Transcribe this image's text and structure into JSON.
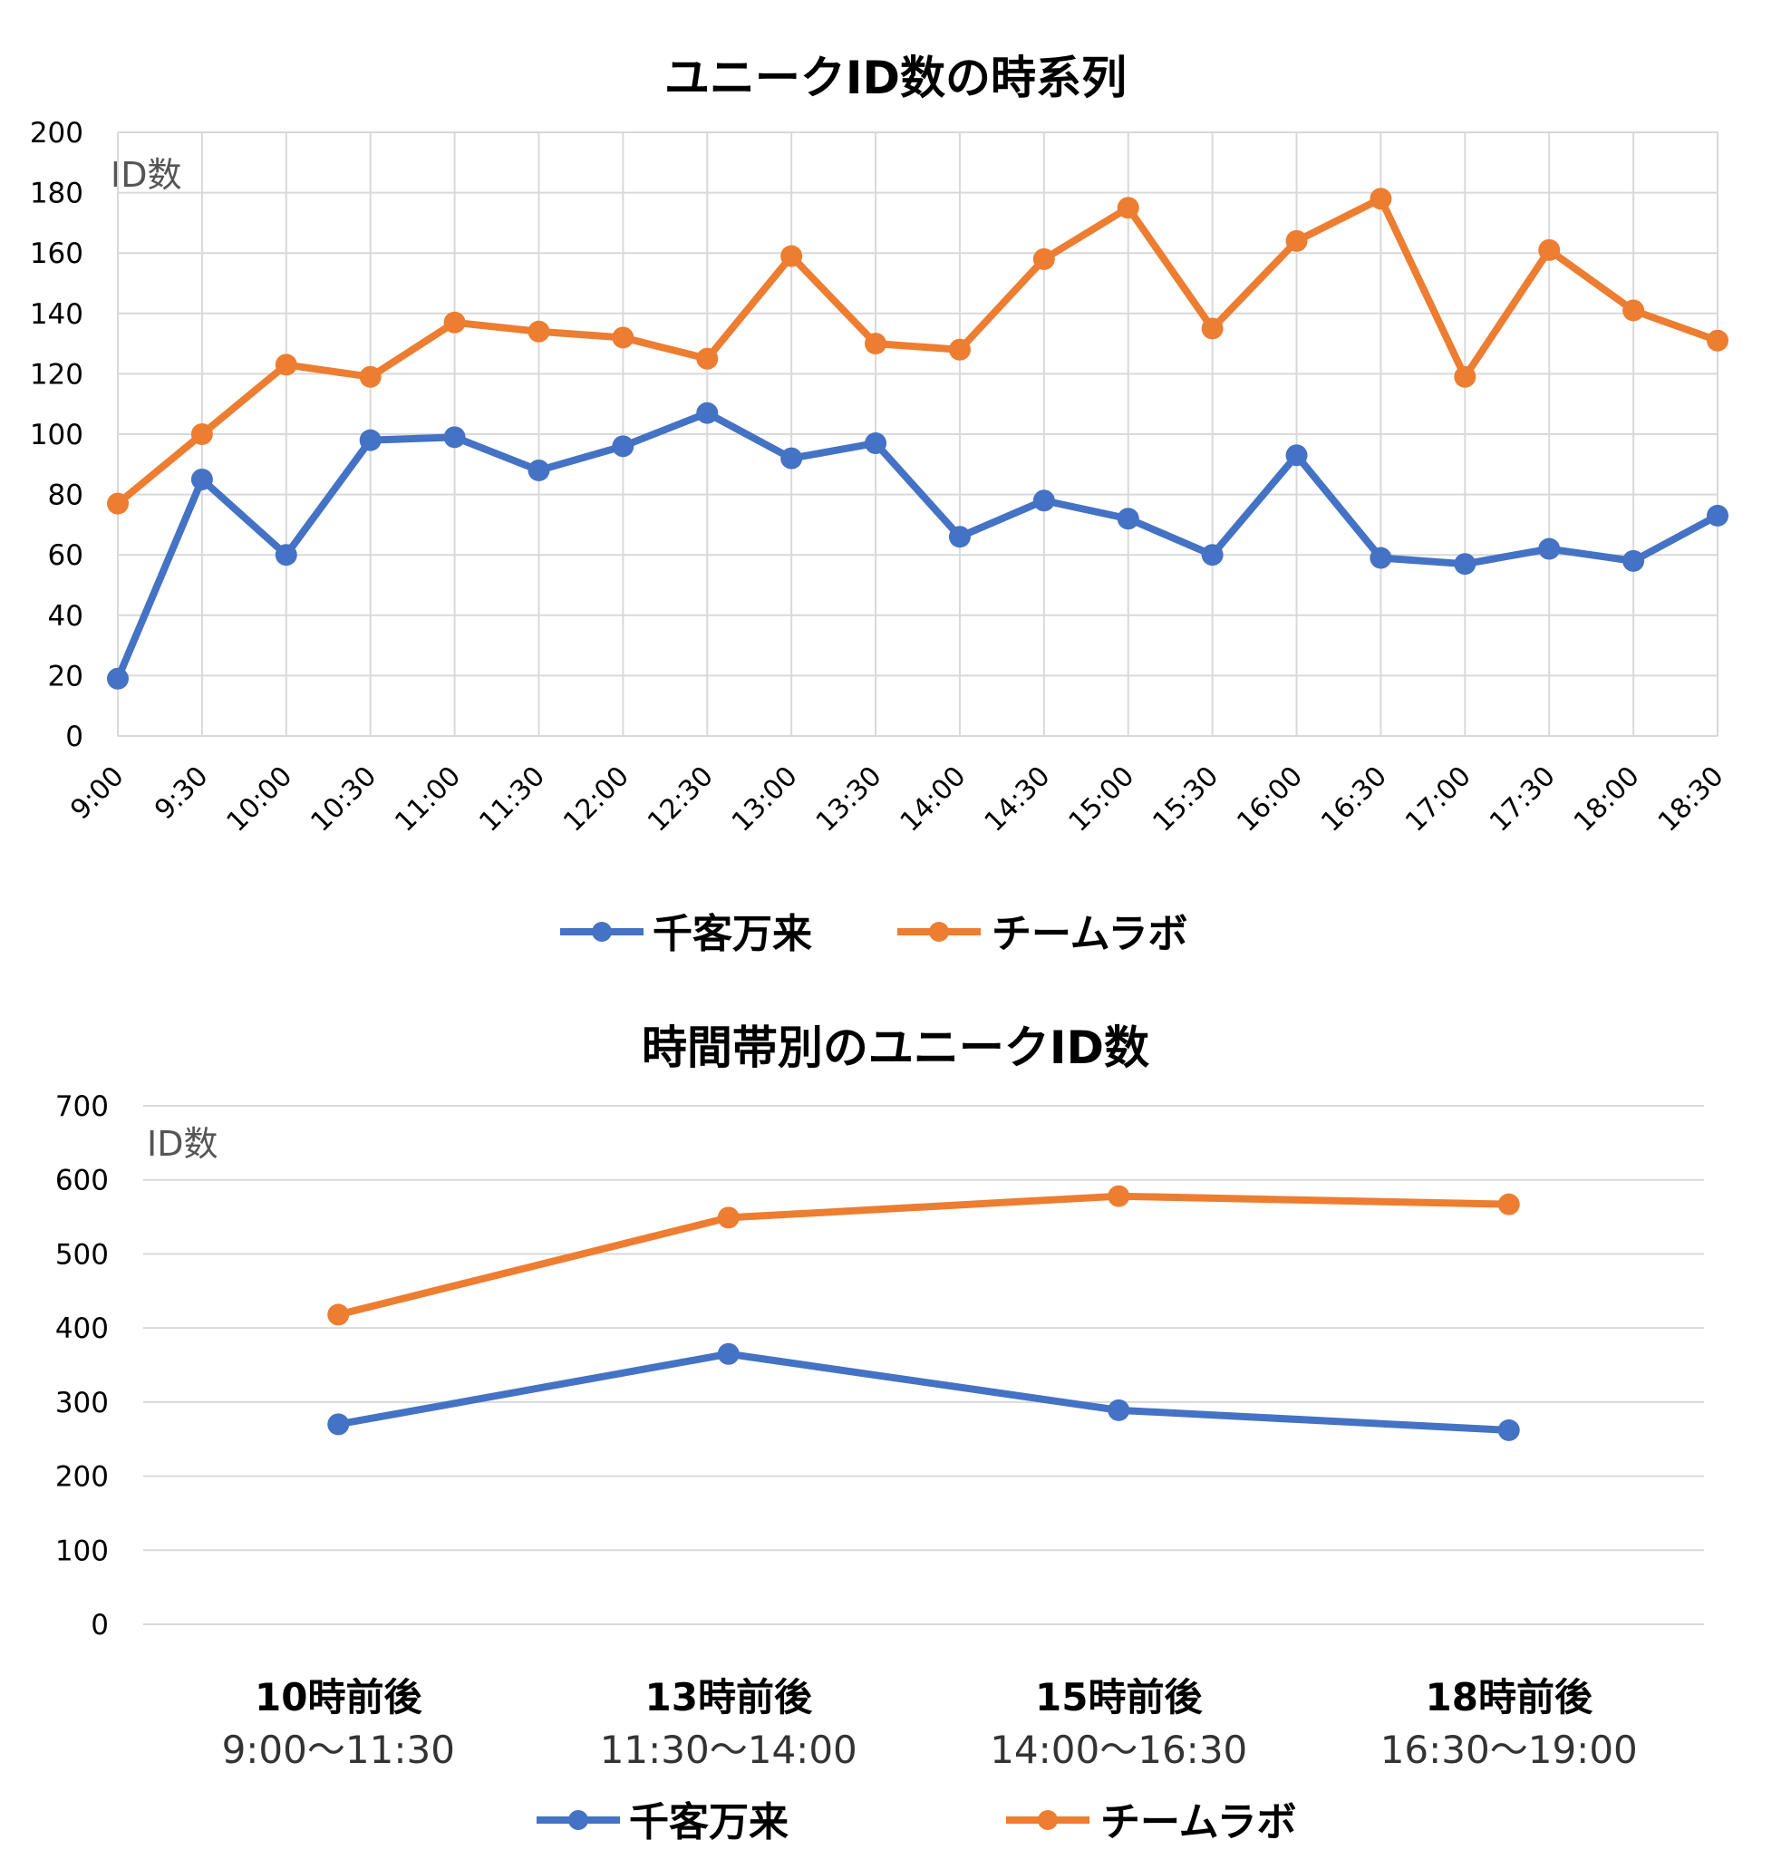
{
  "colors": {
    "senkyaku": "#4472C4",
    "teamlab": "#ED7D31",
    "grid": "#D9D9D9"
  },
  "chart_data": [
    {
      "type": "line",
      "title": "ユニークID数の時系列",
      "ylabel": "ID数",
      "ylim": [
        0,
        200
      ],
      "yticks": [
        0,
        20,
        40,
        60,
        80,
        100,
        120,
        140,
        160,
        180,
        200
      ],
      "grid": "both",
      "legend": "bottom",
      "categories": [
        "9:00",
        "9:30",
        "10:00",
        "10:30",
        "11:00",
        "11:30",
        "12:00",
        "12:30",
        "13:00",
        "13:30",
        "14:00",
        "14:30",
        "15:00",
        "15:30",
        "16:00",
        "16:30",
        "17:00",
        "17:30",
        "18:00",
        "18:30"
      ],
      "series": [
        {
          "name": "千客万来",
          "values": [
            19,
            85,
            60,
            98,
            99,
            88,
            96,
            107,
            92,
            97,
            66,
            78,
            72,
            60,
            93,
            59,
            57,
            62,
            58,
            73
          ]
        },
        {
          "name": "チームラボ",
          "values": [
            77,
            100,
            123,
            119,
            137,
            134,
            132,
            125,
            159,
            130,
            128,
            158,
            175,
            135,
            164,
            178,
            119,
            161,
            141,
            131
          ]
        }
      ]
    },
    {
      "type": "line",
      "title": "時間帯別のユニークID数",
      "ylabel": "ID数",
      "ylim": [
        0,
        700
      ],
      "yticks": [
        0,
        100,
        200,
        300,
        400,
        500,
        600,
        700
      ],
      "grid": "horizontal",
      "legend": "bottom",
      "categories": [
        "10時前後",
        "13時前後",
        "15時前後",
        "18時前後"
      ],
      "category_subtitles": [
        "9:00～11:30",
        "11:30～14:00",
        "14:00～16:30",
        "16:30～19:00"
      ],
      "series": [
        {
          "name": "千客万来",
          "values": [
            270,
            365,
            289,
            262
          ]
        },
        {
          "name": "チームラボ",
          "values": [
            418,
            549,
            578,
            567
          ]
        }
      ]
    }
  ]
}
